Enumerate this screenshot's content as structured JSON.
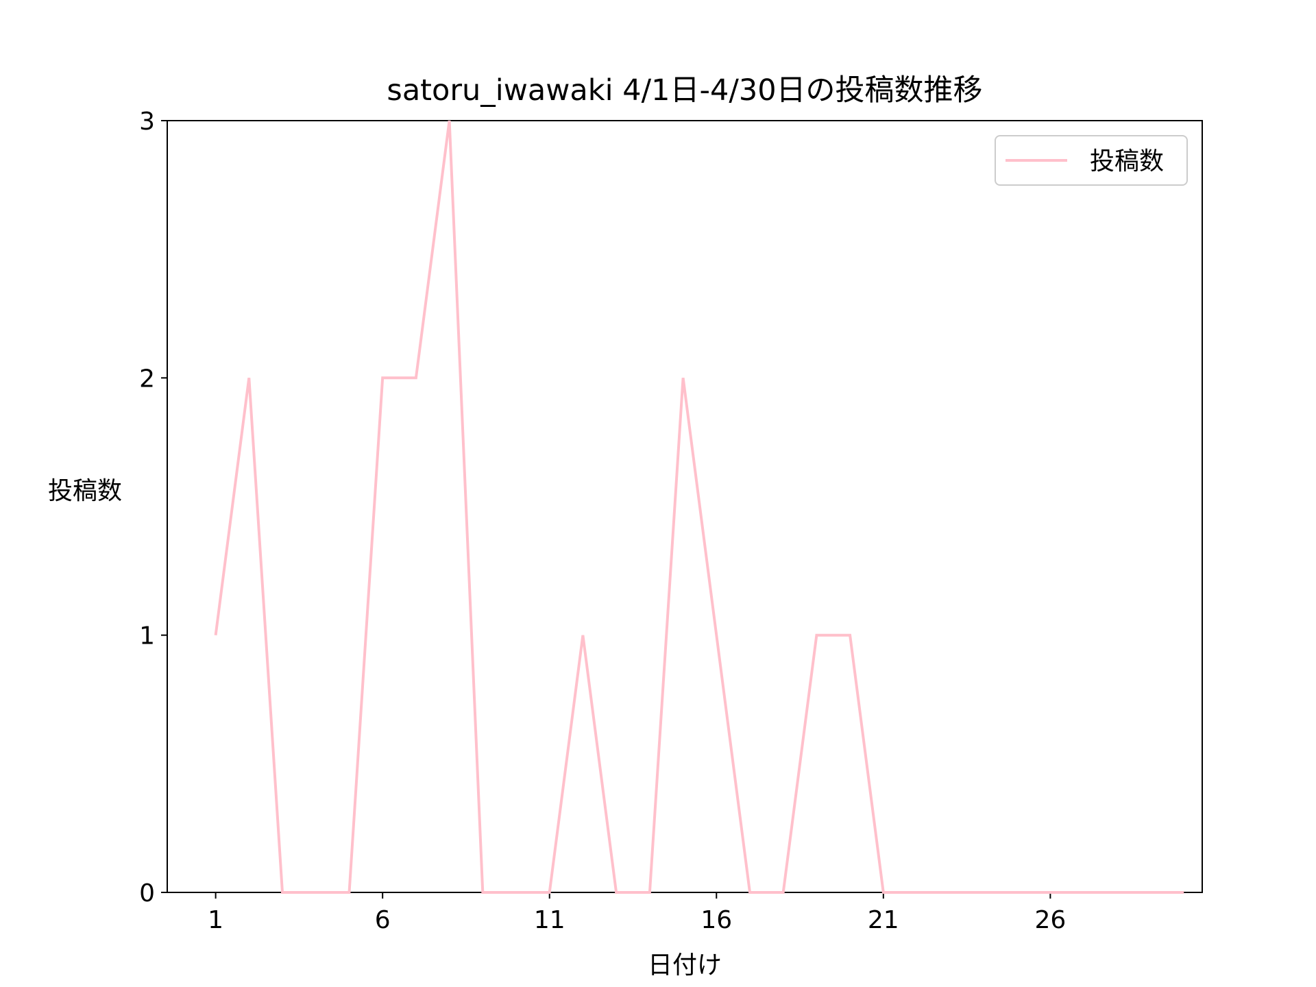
{
  "chart_data": {
    "type": "line",
    "title": "satoru_iwawaki 4/1日-4/30日の投稿数推移",
    "xlabel": "日付け",
    "ylabel": "投稿数",
    "x": [
      1,
      2,
      3,
      4,
      5,
      6,
      7,
      8,
      9,
      10,
      11,
      12,
      13,
      14,
      15,
      16,
      17,
      18,
      19,
      20,
      21,
      22,
      23,
      24,
      25,
      26,
      27,
      28,
      29,
      30
    ],
    "series": [
      {
        "name": "投稿数",
        "color": "#ffc0cb",
        "values": [
          1,
          2,
          0,
          0,
          0,
          2,
          2,
          3,
          0,
          0,
          0,
          1,
          0,
          0,
          2,
          1,
          0,
          0,
          1,
          1,
          0,
          0,
          0,
          0,
          0,
          0,
          0,
          0,
          0,
          0
        ]
      }
    ],
    "xticks": [
      1,
      6,
      11,
      16,
      21,
      26
    ],
    "xtick_labels": [
      "1",
      "6",
      "11",
      "16",
      "21",
      "26"
    ],
    "yticks": [
      0,
      1,
      2,
      3
    ],
    "ytick_labels": [
      "0",
      "1",
      "2",
      "3"
    ],
    "xlim": [
      -0.45,
      30.55
    ],
    "ylim": [
      0,
      3
    ],
    "grid": false,
    "legend": {
      "position": "top-right",
      "entries": [
        "投稿数"
      ]
    }
  }
}
